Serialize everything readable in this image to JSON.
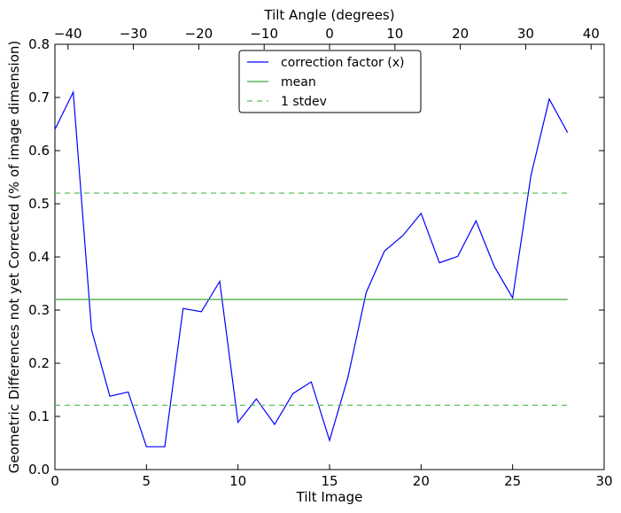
{
  "chart_data": {
    "type": "line",
    "xlabel": "Tilt Image",
    "ylabel": "Geometric Differences not yet Corrected (% of image dimension)",
    "top_xlabel": "Tilt Angle (degrees)",
    "xlim": [
      0,
      30
    ],
    "ylim": [
      0,
      0.8
    ],
    "top_xlim": [
      -42,
      42
    ],
    "xticks": [
      0,
      5,
      10,
      15,
      20,
      25,
      30
    ],
    "xtick_labels": [
      "0",
      "5",
      "10",
      "15",
      "20",
      "25",
      "30"
    ],
    "yticks": [
      0,
      0.1,
      0.2,
      0.3,
      0.4,
      0.5,
      0.6,
      0.7,
      0.8
    ],
    "ytick_labels": [
      "0.0",
      "0.1",
      "0.2",
      "0.3",
      "0.4",
      "0.5",
      "0.6",
      "0.7",
      "0.8"
    ],
    "top_xticks": [
      -40,
      -30,
      -20,
      -10,
      0,
      10,
      20,
      30,
      40
    ],
    "top_xtick_labels": [
      "−40",
      "−30",
      "−20",
      "−10",
      "0",
      "10",
      "20",
      "30",
      "40"
    ],
    "grid": false,
    "legend_position": "top-center",
    "series": [
      {
        "name": "correction factor (x)",
        "color": "#0000ff",
        "style": "solid",
        "x": [
          0,
          1,
          2,
          3,
          4,
          5,
          6,
          7,
          8,
          9,
          10,
          11,
          12,
          13,
          14,
          15,
          16,
          17,
          18,
          19,
          20,
          21,
          22,
          23,
          24,
          25,
          26,
          27,
          28
        ],
        "y": [
          0.64,
          0.71,
          0.263,
          0.138,
          0.146,
          0.043,
          0.043,
          0.303,
          0.297,
          0.354,
          0.089,
          0.133,
          0.085,
          0.143,
          0.165,
          0.055,
          0.173,
          0.333,
          0.411,
          0.44,
          0.482,
          0.389,
          0.401,
          0.468,
          0.382,
          0.323,
          0.553,
          0.697,
          0.634
        ]
      },
      {
        "name": "mean",
        "color": "#3aa63a",
        "style": "solid",
        "x": [
          0,
          28
        ],
        "y": [
          0.32,
          0.32
        ]
      },
      {
        "name": "1 stdev",
        "color": "#5cbf5c",
        "style": "dashed",
        "x": [
          0,
          28
        ],
        "y": [
          0.52,
          0.52
        ]
      },
      {
        "name": "",
        "color": "#5cbf5c",
        "style": "dashed",
        "x": [
          0,
          28
        ],
        "y": [
          0.121,
          0.121
        ]
      }
    ]
  }
}
